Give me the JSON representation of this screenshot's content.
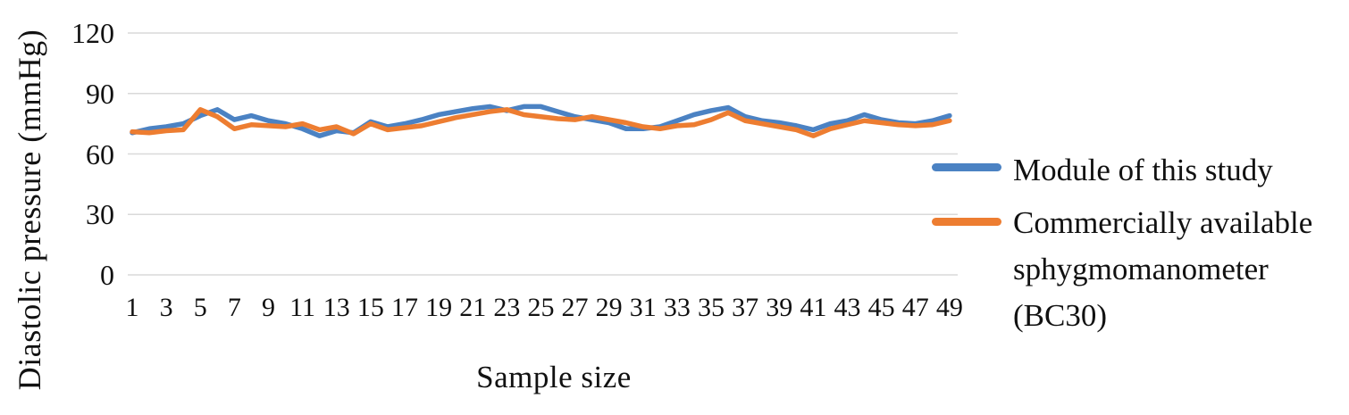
{
  "figure": {
    "background": "#FFFFFF"
  },
  "colors": {
    "grid": "#D9D9D9",
    "text": "#111111",
    "series_blue": "#4B82C3",
    "series_orange": "#ED7D31"
  },
  "chart_data": {
    "type": "line",
    "title": "",
    "xlabel": "Sample size",
    "ylabel": "Diastolic pressure (mmHg)",
    "ylim": [
      0,
      120
    ],
    "yticks": [
      0,
      30,
      60,
      90,
      120
    ],
    "xticks": [
      1,
      3,
      5,
      7,
      9,
      11,
      13,
      15,
      17,
      19,
      21,
      23,
      25,
      27,
      29,
      31,
      33,
      35,
      37,
      39,
      41,
      43,
      45,
      47,
      49
    ],
    "x": [
      1,
      2,
      3,
      4,
      5,
      6,
      7,
      8,
      9,
      10,
      11,
      12,
      13,
      14,
      15,
      16,
      17,
      18,
      19,
      20,
      21,
      22,
      23,
      24,
      25,
      26,
      27,
      28,
      29,
      30,
      31,
      32,
      33,
      34,
      35,
      36,
      37,
      38,
      39,
      40,
      41,
      42,
      43,
      44,
      45,
      46,
      47,
      48,
      49
    ],
    "grid": "horizontal",
    "legend_position": "right",
    "series": [
      {
        "name": "Module of this study",
        "color": "#4B82C3",
        "values": [
          70.5,
          72.5,
          73.5,
          75,
          79,
          82,
          77,
          79,
          76.5,
          75,
          72.5,
          69,
          71.5,
          70.5,
          76,
          73.5,
          75,
          77,
          79.5,
          81,
          82.5,
          83.5,
          81.5,
          83.5,
          83.5,
          81,
          78.5,
          77,
          75.5,
          72.5,
          72.5,
          73.5,
          76.5,
          79.5,
          81.5,
          83,
          78.5,
          76.5,
          75.5,
          74,
          72,
          75,
          76.5,
          79.5,
          77,
          75.5,
          75,
          76.5,
          79
        ]
      },
      {
        "name": "Commercially available sphygmomanometer (BC30)",
        "color": "#ED7D31",
        "values": [
          71,
          70.5,
          71.5,
          72,
          82,
          78.5,
          72.5,
          74.5,
          74,
          73.5,
          75,
          72,
          73.5,
          70,
          75,
          72,
          73,
          74,
          76,
          78,
          79.5,
          81,
          82,
          79.5,
          78.5,
          77.5,
          77,
          78.5,
          77,
          75.5,
          73.5,
          72.5,
          74,
          74.5,
          77,
          80.5,
          76.5,
          75,
          73.5,
          72,
          69,
          72.5,
          74.5,
          76.5,
          75.5,
          74.5,
          74,
          74.5,
          76.5
        ]
      }
    ]
  },
  "legend": {
    "items": [
      {
        "label": "Module of this study",
        "lines": [
          "Module of this study"
        ],
        "color": "#4B82C3"
      },
      {
        "label": "Commercially available sphygmomanometer (BC30)",
        "lines": [
          "Commercially available",
          "sphygmomanometer",
          "(BC30)"
        ],
        "color": "#ED7D31"
      }
    ]
  }
}
